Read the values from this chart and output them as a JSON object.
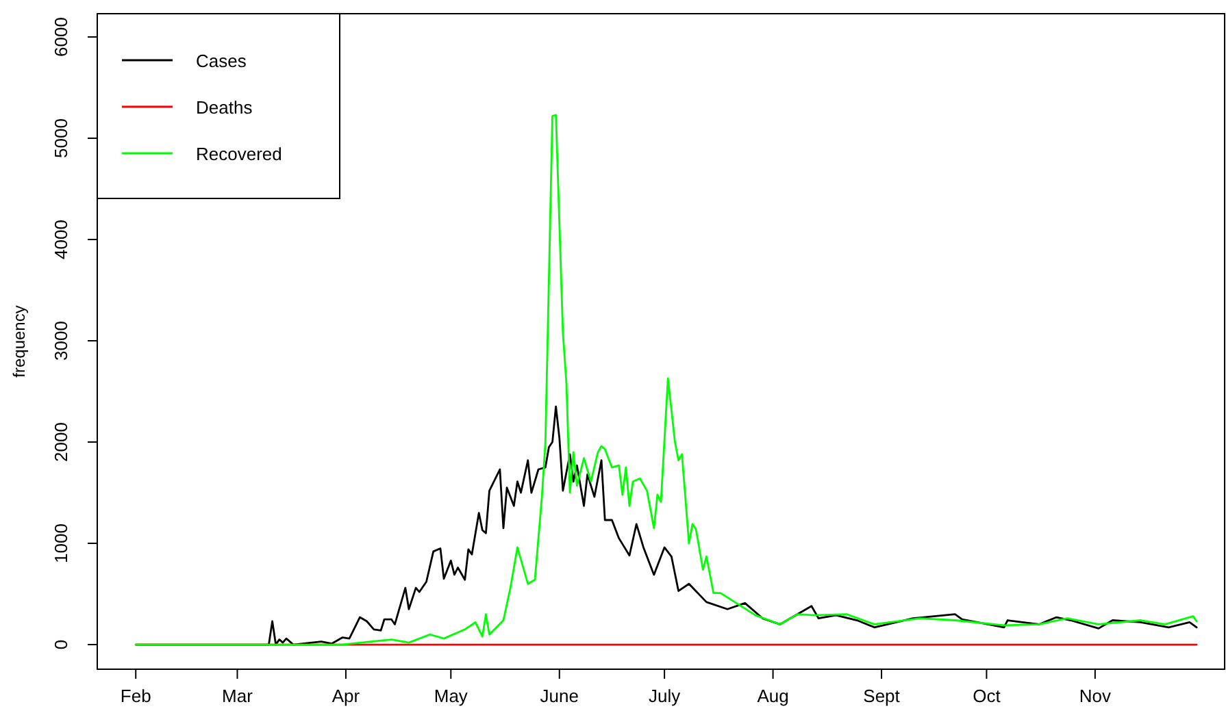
{
  "chart_data": {
    "type": "line",
    "ylabel": "frequency",
    "legend": "top left",
    "grid": false,
    "xlim": [
      "--01-21",
      "--12-08"
    ],
    "xticks": [
      {
        "value": "--02-01",
        "label": "Feb"
      },
      {
        "value": "--03-01",
        "label": "Mar"
      },
      {
        "value": "--04-01",
        "label": "Apr"
      },
      {
        "value": "--05-01",
        "label": "May"
      },
      {
        "value": "--06-01",
        "label": "June"
      },
      {
        "value": "--07-01",
        "label": "July"
      },
      {
        "value": "--08-01",
        "label": "Aug"
      },
      {
        "value": "--09-01",
        "label": "Sept"
      },
      {
        "value": "--10-01",
        "label": "Oct"
      },
      {
        "value": "--11-01",
        "label": "Nov"
      }
    ],
    "ylim": [
      -243,
      6230
    ],
    "yticks": [
      0,
      1000,
      2000,
      3000,
      4000,
      5000,
      6000
    ],
    "series": [
      {
        "name": "Cases",
        "color": "#000000",
        "x": [
          "--02-01",
          "--03-07",
          "--03-10",
          "--03-11",
          "--03-12",
          "--03-13",
          "--03-14",
          "--03-15",
          "--03-17",
          "--03-25",
          "--03-28",
          "--03-31",
          "--04-02",
          "--04-03",
          "--04-05",
          "--04-07",
          "--04-09",
          "--04-11",
          "--04-12",
          "--04-14",
          "--04-15",
          "--04-18",
          "--04-19",
          "--04-21",
          "--04-22",
          "--04-24",
          "--04-26",
          "--04-28",
          "--04-29",
          "--05-01",
          "--05-02",
          "--05-03",
          "--05-05",
          "--05-06",
          "--05-07",
          "--05-09",
          "--05-10",
          "--05-11",
          "--05-12",
          "--05-15",
          "--05-16",
          "--05-17",
          "--05-19",
          "--05-20",
          "--05-21",
          "--05-23",
          "--05-24",
          "--05-26",
          "--05-28",
          "--05-29",
          "--05-30",
          "--05-31",
          "--06-01",
          "--06-02",
          "--06-04",
          "--06-05",
          "--06-06",
          "--06-08",
          "--06-09",
          "--06-11",
          "--06-13",
          "--06-14",
          "--06-16",
          "--06-18",
          "--06-21",
          "--06-23",
          "--06-25",
          "--06-28",
          "--07-01",
          "--07-03",
          "--07-05",
          "--07-08",
          "--07-13",
          "--07-19",
          "--07-24",
          "--07-29",
          "--08-03",
          "--08-05",
          "--08-12",
          "--08-14",
          "--08-19",
          "--08-25",
          "--08-30",
          "--09-10",
          "--09-22",
          "--09-24",
          "--10-06",
          "--10-07",
          "--10-16",
          "--10-21",
          "--10-25",
          "--11-02",
          "--11-06",
          "--11-14",
          "--11-22",
          "--11-28",
          "--11-30"
        ],
        "values": [
          0,
          0,
          0,
          230,
          0,
          50,
          20,
          60,
          0,
          30,
          10,
          70,
          60,
          130,
          270,
          230,
          150,
          140,
          250,
          250,
          200,
          560,
          350,
          560,
          520,
          620,
          920,
          950,
          650,
          830,
          690,
          760,
          640,
          940,
          890,
          1300,
          1130,
          1100,
          1520,
          1730,
          1150,
          1550,
          1370,
          1610,
          1500,
          1820,
          1500,
          1730,
          1750,
          1950,
          2000,
          2350,
          2040,
          1520,
          1880,
          1610,
          1770,
          1370,
          1680,
          1460,
          1820,
          1230,
          1230,
          1050,
          880,
          1190,
          960,
          690,
          960,
          870,
          530,
          600,
          420,
          350,
          410,
          260,
          200,
          240,
          380,
          260,
          290,
          240,
          170,
          260,
          300,
          250,
          170,
          240,
          200,
          270,
          240,
          160,
          240,
          220,
          170,
          220,
          170
        ]
      },
      {
        "name": "Deaths",
        "color": "#ff0000",
        "x": [
          "--02-01",
          "--06-10",
          "--11-30"
        ],
        "values": [
          0,
          0,
          0
        ]
      },
      {
        "name": "Recovered",
        "color": "#00ff00",
        "x": [
          "--02-01",
          "--03-31",
          "--04-14",
          "--04-19",
          "--04-25",
          "--04-29",
          "--05-05",
          "--05-08",
          "--05-10",
          "--05-11",
          "--05-12",
          "--05-16",
          "--05-18",
          "--05-20",
          "--05-23",
          "--05-25",
          "--05-27",
          "--05-28",
          "--05-30",
          "--05-31",
          "--06-02",
          "--06-03",
          "--06-04",
          "--06-05",
          "--06-06",
          "--06-08",
          "--06-10",
          "--06-12",
          "--06-13",
          "--06-14",
          "--06-16",
          "--06-18",
          "--06-19",
          "--06-20",
          "--06-21",
          "--06-22",
          "--06-24",
          "--06-26",
          "--06-28",
          "--06-29",
          "--06-30",
          "--07-02",
          "--07-04",
          "--07-05",
          "--07-06",
          "--07-08",
          "--07-09",
          "--07-10",
          "--07-12",
          "--07-13",
          "--07-15",
          "--07-17",
          "--07-22",
          "--07-27",
          "--08-03",
          "--08-08",
          "--08-13",
          "--08-22",
          "--08-30",
          "--09-12",
          "--09-22",
          "--10-06",
          "--10-16",
          "--10-24",
          "--11-02",
          "--11-14",
          "--11-21",
          "--11-29",
          "--11-30"
        ],
        "values": [
          0,
          0,
          50,
          20,
          100,
          60,
          150,
          220,
          80,
          300,
          100,
          240,
          560,
          960,
          600,
          640,
          1460,
          2000,
          5220,
          5230,
          3080,
          2580,
          1500,
          1900,
          1570,
          1840,
          1610,
          1900,
          1960,
          1930,
          1750,
          1770,
          1480,
          1750,
          1370,
          1610,
          1640,
          1520,
          1150,
          1480,
          1410,
          2630,
          2000,
          1820,
          1880,
          1000,
          1190,
          1140,
          740,
          870,
          510,
          510,
          400,
          290,
          200,
          300,
          290,
          300,
          200,
          260,
          240,
          190,
          200,
          260,
          200,
          240,
          200,
          280,
          230
        ]
      }
    ]
  }
}
